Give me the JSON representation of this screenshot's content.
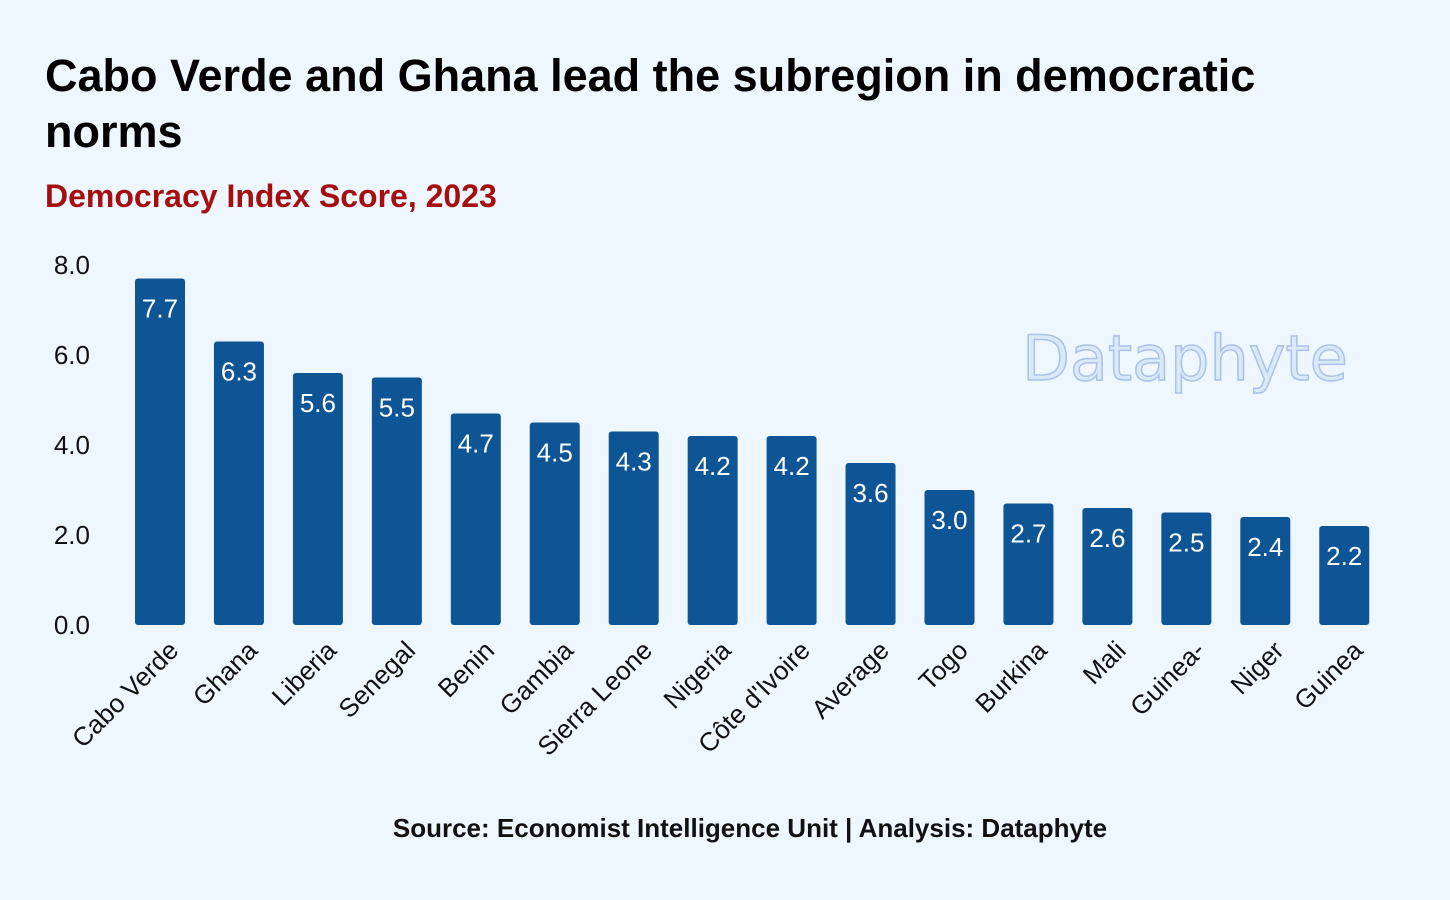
{
  "title": "Cabo Verde and Ghana lead the subregion in democratic norms",
  "subtitle": "Democracy Index Score, 2023",
  "source": "Source: Economist Intelligence Unit | Analysis: Dataphyte",
  "watermark": "Dataphyte",
  "colors": {
    "bar": "#0d5594",
    "background": "#eef6ff",
    "subtitle": "#a50f0f",
    "data_label": "#ffffff"
  },
  "chart_data": {
    "type": "bar",
    "title": "Cabo Verde and Ghana lead the subregion in democratic norms",
    "subtitle": "Democracy Index Score, 2023",
    "xlabel": "",
    "ylabel": "",
    "categories": [
      "Cabo Verde",
      "Ghana",
      "Liberia",
      "Senegal",
      "Benin",
      "Gambia",
      "Sierra Leone",
      "Nigeria",
      "Côte d'Ivoire",
      "Average",
      "Togo",
      "Burkina",
      "Mali",
      "Guinea-",
      "Niger",
      "Guinea"
    ],
    "values": [
      7.7,
      6.3,
      5.6,
      5.5,
      4.7,
      4.5,
      4.3,
      4.2,
      4.2,
      3.6,
      3.0,
      2.7,
      2.6,
      2.5,
      2.4,
      2.2
    ],
    "value_labels": [
      "7.7",
      "6.3",
      "5.6",
      "5.5",
      "4.7",
      "4.5",
      "4.3",
      "4.2",
      "4.2",
      "3.6",
      "3.0",
      "2.7",
      "2.6",
      "2.5",
      "2.4",
      "2.2"
    ],
    "y_ticks": [
      "0.0",
      "2.0",
      "4.0",
      "6.0",
      "8.0"
    ],
    "y_tick_values": [
      0,
      2,
      4,
      6,
      8
    ],
    "ylim": [
      0,
      8
    ],
    "grid": false,
    "legend": "none"
  }
}
